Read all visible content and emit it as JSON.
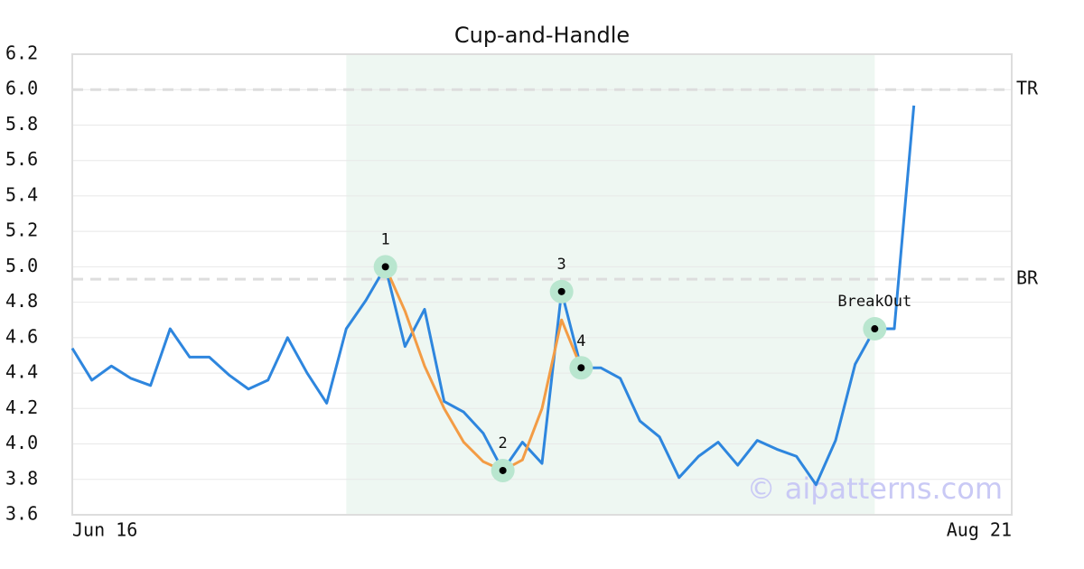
{
  "chart_data": {
    "type": "line",
    "title": "Cup-and-Handle",
    "watermark": "© aipatterns.com",
    "categories": [
      "Jun 16",
      null,
      null,
      null,
      null,
      null,
      null,
      null,
      null,
      null,
      null,
      null,
      null,
      null,
      null,
      null,
      null,
      null,
      null,
      null,
      null,
      null,
      null,
      null,
      null,
      null,
      null,
      null,
      null,
      null,
      null,
      null,
      null,
      null,
      null,
      null,
      null,
      null,
      null,
      null,
      null,
      null,
      null,
      null,
      null,
      null,
      null,
      null,
      "Aug 21"
    ],
    "xlim": [
      0,
      48
    ],
    "ylim": [
      3.6,
      6.2
    ],
    "yticks": [
      3.6,
      3.8,
      {
        "value": 4.0,
        "label": "4.0"
      },
      4.2,
      4.4,
      4.6,
      4.8,
      {
        "value": 5.0,
        "label": "5.0"
      },
      5.2,
      5.4,
      5.6,
      5.8,
      {
        "value": 6.0,
        "label": "6.0"
      },
      6.2
    ],
    "grid": true,
    "series": [
      {
        "color": "#2e86de",
        "values": [
          4.54,
          4.36,
          4.44,
          4.37,
          4.33,
          4.65,
          4.49,
          4.49,
          4.39,
          4.31,
          4.36,
          4.6,
          4.4,
          4.23,
          4.65,
          4.81,
          5.0,
          4.55,
          4.76,
          4.24,
          4.18,
          4.06,
          3.85,
          4.01,
          3.89,
          4.86,
          4.43,
          4.43,
          4.37,
          4.13,
          4.04,
          3.81,
          3.93,
          4.01,
          3.88,
          4.02,
          3.97,
          3.93,
          3.77,
          4.02,
          4.45,
          4.65,
          4.65,
          5.91,
          null,
          null,
          null,
          null,
          null
        ]
      },
      {
        "color": "#f39c45",
        "values": [
          null,
          null,
          null,
          null,
          null,
          null,
          null,
          null,
          null,
          null,
          null,
          null,
          null,
          null,
          null,
          null,
          5.0,
          4.75,
          4.44,
          4.2,
          4.01,
          3.9,
          3.85,
          3.91,
          4.2,
          4.7,
          4.43,
          null,
          null,
          null,
          null,
          null,
          null,
          null,
          null,
          null,
          null,
          null,
          null,
          null,
          null,
          null,
          null,
          null,
          null,
          null,
          null,
          null,
          null
        ]
      }
    ],
    "highlight": [
      14,
      41
    ],
    "hlines": [
      {
        "label": "TR",
        "value": 6.0
      },
      {
        "label": "BR",
        "value": 4.93
      }
    ],
    "points": [
      {
        "label": "1",
        "x": 16,
        "y": 5.0
      },
      {
        "label": "2",
        "x": 22,
        "y": 3.85
      },
      {
        "label": "3",
        "x": 25,
        "y": 4.86
      },
      {
        "label": "4",
        "x": 26,
        "y": 4.43
      },
      {
        "label": "BreakOut",
        "x": 41,
        "y": 4.65
      }
    ]
  }
}
